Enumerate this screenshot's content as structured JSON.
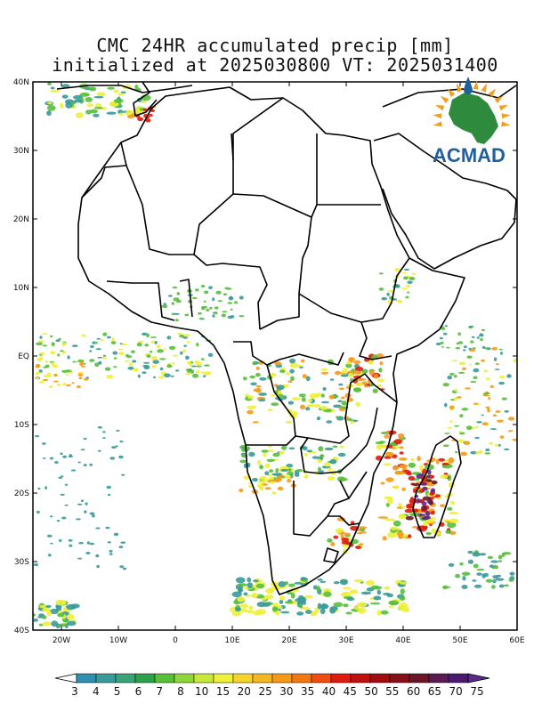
{
  "title": {
    "line1": "CMC 24HR accumulated precip [mm]",
    "line2": "initialized at 2025030800 VT: 2025031400"
  },
  "logo": {
    "text": "ACMAD",
    "color": "#1f5f9f",
    "continent_color": "#2e8b3e",
    "ray_color": "#f0a020"
  },
  "axes": {
    "lat_labels": [
      "40N",
      "30N",
      "20N",
      "10N",
      "EQ",
      "10S",
      "20S",
      "30S",
      "40S"
    ],
    "lon_labels": [
      "20W",
      "10W",
      "0",
      "10E",
      "20E",
      "30E",
      "40E",
      "50E",
      "60E"
    ],
    "lat_range": [
      -40,
      40
    ],
    "lon_range": [
      -25,
      60
    ]
  },
  "colorbar": {
    "labels": [
      "3",
      "4",
      "5",
      "6",
      "7",
      "8",
      "10",
      "15",
      "20",
      "25",
      "30",
      "35",
      "40",
      "45",
      "50",
      "55",
      "60",
      "65",
      "70",
      "75"
    ],
    "colors": [
      "#2f8fb0",
      "#3a9a9a",
      "#3aa37a",
      "#2ca04a",
      "#57bf3a",
      "#8fd63a",
      "#c6e83a",
      "#eef03a",
      "#f7d42a",
      "#f5b820",
      "#f59a18",
      "#f27812",
      "#ee4c10",
      "#e01a0e",
      "#c0100e",
      "#a00c10",
      "#861018",
      "#6a1628",
      "#5a1c50",
      "#4a1a70"
    ],
    "under_color": "#ffffff",
    "over_color": "#5a2a8a"
  },
  "precip_colors": {
    "light": "#3a9a9a",
    "green": "#57bf3a",
    "yellow": "#eef03a",
    "orange": "#f59a18",
    "red": "#e01a0e",
    "dark": "#6a1628",
    "purple": "#5a2a8a"
  }
}
